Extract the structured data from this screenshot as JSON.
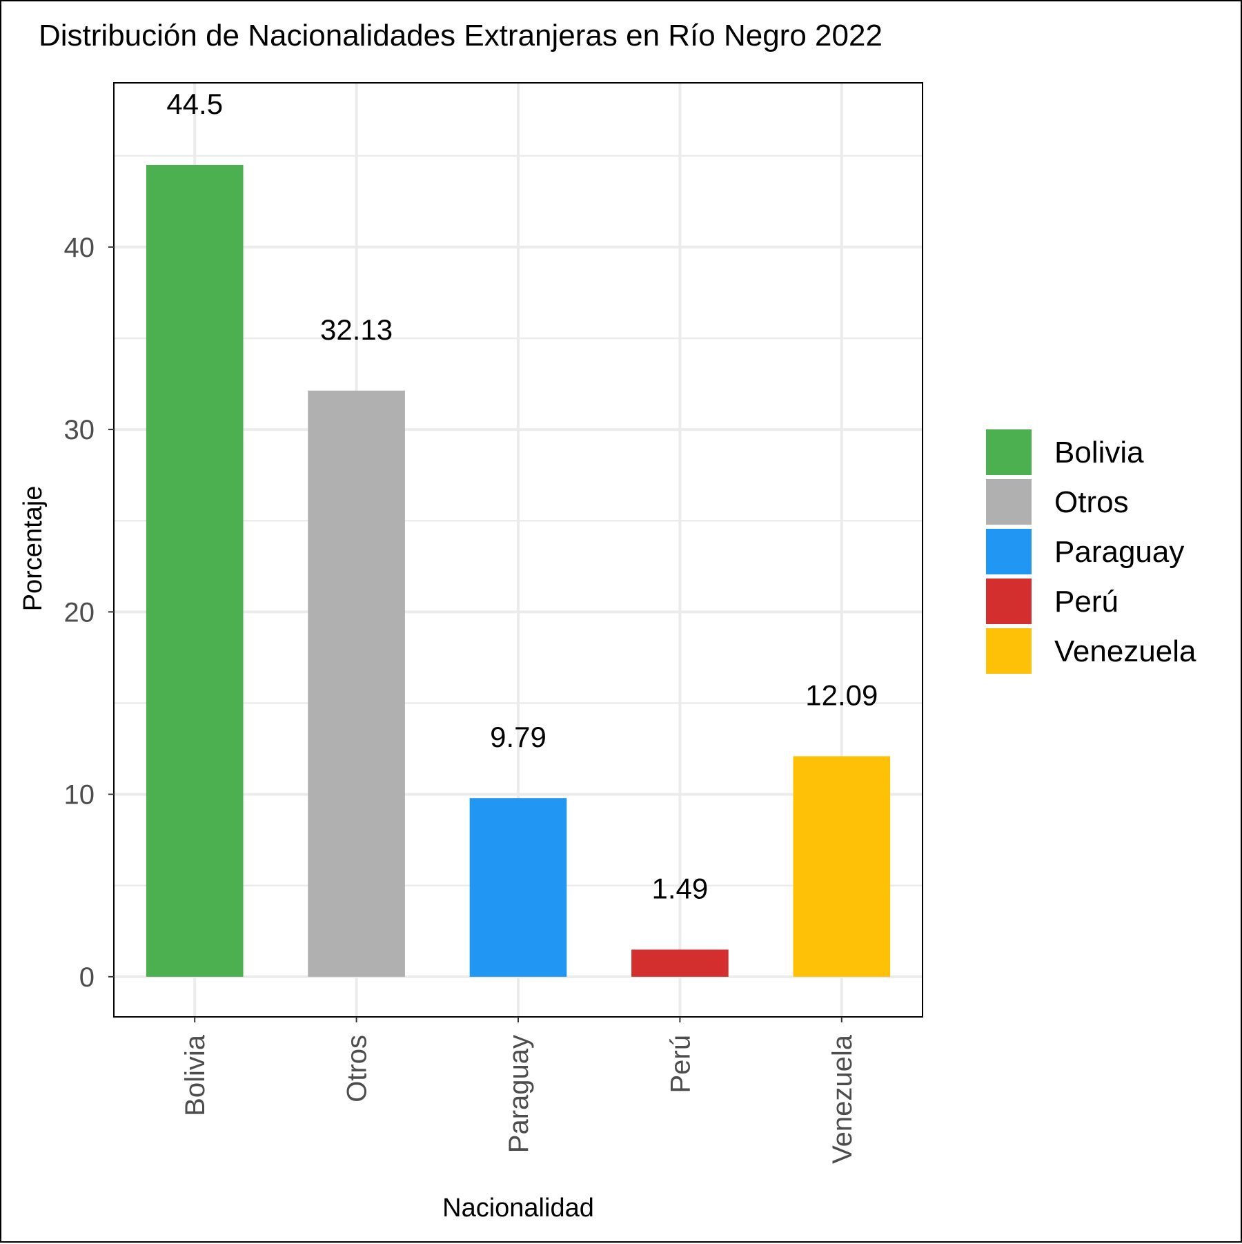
{
  "chart_data": {
    "type": "bar",
    "title": "Distribución de Nacionalidades Extranjeras en Río Negro 2022",
    "xlabel": "Nacionalidad",
    "ylabel": "Porcentaje",
    "categories": [
      "Bolivia",
      "Otros",
      "Paraguay",
      "Perú",
      "Venezuela"
    ],
    "values": [
      44.5,
      32.13,
      9.79,
      1.49,
      12.09
    ],
    "data_labels": [
      "44.5",
      "32.13",
      "9.79",
      "1.49",
      "12.09"
    ],
    "colors": [
      "#4caf50",
      "#b0b0b0",
      "#2196f3",
      "#d32f2f",
      "#ffc107"
    ],
    "ylim": [
      -2.2,
      49
    ],
    "yticks": [
      0,
      10,
      20,
      30,
      40
    ],
    "ytick_labels": [
      "0",
      "10",
      "20",
      "30",
      "40"
    ],
    "grid": true,
    "legend": {
      "position": "right",
      "entries": [
        "Bolivia",
        "Otros",
        "Paraguay",
        "Perú",
        "Venezuela"
      ]
    }
  }
}
